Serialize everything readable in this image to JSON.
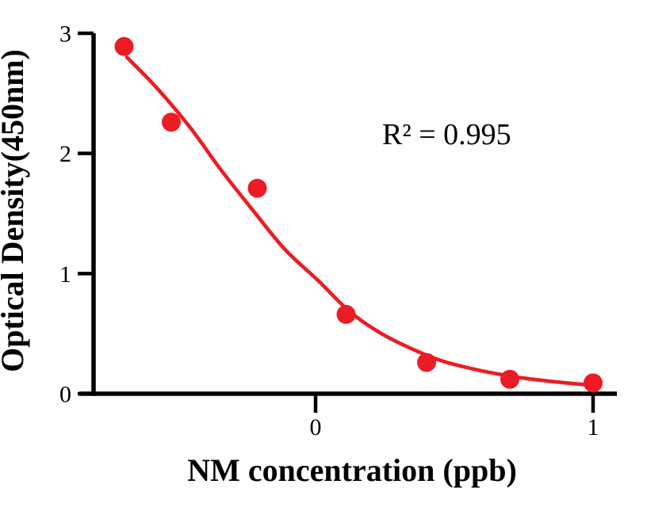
{
  "figure": {
    "background": "#ffffff",
    "axis_color": "#000000",
    "text_color": "#000000",
    "accent_red": "#EC1C24"
  },
  "chart_data": {
    "type": "scatter",
    "title": "",
    "xlabel": "NM concentration (ppb)",
    "ylabel": "Optical Density(450nm)",
    "annotation": {
      "text": "R² = 0.995"
    },
    "x_scale_note": "x axis is log10-transformed NM concentration (ppb)",
    "xlim": [
      -0.85,
      1.09
    ],
    "ylim": [
      0,
      3
    ],
    "grid": false,
    "legend_position": "none",
    "xticks": [
      {
        "value": 0,
        "label": "0"
      },
      {
        "value": 1,
        "label": "1"
      }
    ],
    "yticks": [
      {
        "value": 0,
        "label": "0"
      },
      {
        "value": 1,
        "label": "1"
      },
      {
        "value": 2,
        "label": "2"
      },
      {
        "value": 3,
        "label": "3"
      }
    ],
    "series": [
      {
        "name": "4PL fitted curve",
        "type": "line",
        "color": "#EC1C24",
        "stroke_width": 4.6,
        "points": [
          [
            -0.68,
            2.8
          ],
          [
            -0.57,
            2.54
          ],
          [
            -0.45,
            2.21
          ],
          [
            -0.34,
            1.86
          ],
          [
            -0.22,
            1.51
          ],
          [
            -0.11,
            1.2
          ],
          [
            0.01,
            0.94
          ],
          [
            0.12,
            0.69
          ],
          [
            0.23,
            0.51
          ],
          [
            0.35,
            0.37
          ],
          [
            0.46,
            0.27
          ],
          [
            0.58,
            0.2
          ],
          [
            0.72,
            0.14
          ],
          [
            0.86,
            0.1
          ],
          [
            1.0,
            0.07
          ]
        ]
      },
      {
        "name": "NM standard data points",
        "type": "scatter",
        "color": "#EC1C24",
        "marker_radius": 12,
        "points": [
          [
            -0.69,
            2.89
          ],
          [
            -0.52,
            2.26
          ],
          [
            -0.21,
            1.71
          ],
          [
            0.11,
            0.66
          ],
          [
            0.4,
            0.26
          ],
          [
            0.7,
            0.12
          ],
          [
            1.0,
            0.09
          ]
        ]
      }
    ]
  }
}
